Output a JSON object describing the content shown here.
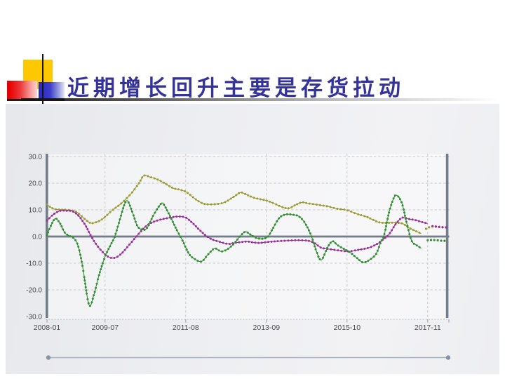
{
  "slide": {
    "title": "近期增长回升主要是存货拉动"
  },
  "palette": {
    "title_color": "#333399",
    "axis_color": "#737d89",
    "grid_color": "#c6c7cc",
    "baseline_color": "#b8b9bf",
    "divider_line_color": "#a5afbf",
    "divider_dot_color": "#8793a5",
    "series_green": "#338e33",
    "series_olive": "#9b9c31",
    "series_purple": "#9a2e9a"
  },
  "chart_data": {
    "type": "line",
    "title": "",
    "xlabel": "",
    "ylabel": "",
    "grid": true,
    "legend": false,
    "x_unit": "months since 2008-01",
    "x_axis": {
      "tick_labels": [
        "2008-01",
        "2009-07",
        "2011-08",
        "2013-09",
        "2015-10",
        "2017-11"
      ],
      "tick_months": [
        0,
        18,
        43,
        68,
        93,
        118
      ],
      "range_months": [
        0,
        124
      ]
    },
    "y_axis": {
      "tick_labels": [
        "30.0",
        "20.0",
        "10.0",
        "0.0",
        "-10.0",
        "-20.0",
        "-30.0"
      ],
      "tick_values": [
        30,
        20,
        10,
        0,
        -10,
        -20,
        -30
      ],
      "range": [
        -30,
        30
      ]
    },
    "series": [
      {
        "name": "olive",
        "color": "#9b9c31",
        "style": "dotted-line",
        "points": [
          [
            0,
            12
          ],
          [
            2,
            10.4
          ],
          [
            4,
            10.1
          ],
          [
            6,
            10
          ],
          [
            9,
            9.3
          ],
          [
            12,
            6.3
          ],
          [
            14,
            5
          ],
          [
            17,
            6.4
          ],
          [
            20,
            9.6
          ],
          [
            23,
            12.4
          ],
          [
            26,
            16
          ],
          [
            28.5,
            20
          ],
          [
            30,
            22.8
          ],
          [
            32,
            22.3
          ],
          [
            34,
            21.5
          ],
          [
            36,
            20.3
          ],
          [
            39,
            18.2
          ],
          [
            41,
            17.6
          ],
          [
            43,
            16.8
          ],
          [
            45,
            15
          ],
          [
            47,
            13.2
          ],
          [
            49,
            12.2
          ],
          [
            52,
            12.1
          ],
          [
            55,
            12.8
          ],
          [
            58,
            15
          ],
          [
            60,
            16.5
          ],
          [
            62,
            15.6
          ],
          [
            64,
            14.6
          ],
          [
            66,
            14
          ],
          [
            68,
            13.5
          ],
          [
            70,
            12.6
          ],
          [
            73,
            11
          ],
          [
            75,
            10.6
          ],
          [
            77,
            11.8
          ],
          [
            79,
            12.8
          ],
          [
            81,
            12.4
          ],
          [
            84,
            11.9
          ],
          [
            87,
            11.3
          ],
          [
            90,
            10.4
          ],
          [
            93,
            9.9
          ],
          [
            96,
            8.5
          ],
          [
            99,
            7.4
          ],
          [
            101,
            6.3
          ],
          [
            103,
            5.3
          ],
          [
            105,
            5.1
          ],
          [
            107,
            5.2
          ],
          [
            109,
            5.1
          ],
          [
            110.5,
            4.7
          ],
          [
            112,
            3.4
          ],
          [
            114,
            2.2
          ],
          [
            116,
            1.1
          ]
        ],
        "tail": [
          [
            117.5,
            2.9
          ],
          [
            119,
            3.7
          ],
          [
            120.5,
            3.7
          ],
          [
            122,
            3.5
          ],
          [
            123.5,
            3.4
          ]
        ]
      },
      {
        "name": "purple",
        "color": "#9a2e9a",
        "style": "dotted-line",
        "points": [
          [
            0,
            6
          ],
          [
            2,
            8.3
          ],
          [
            4,
            9.6
          ],
          [
            6,
            9.7
          ],
          [
            8,
            9.4
          ],
          [
            10,
            7.5
          ],
          [
            12,
            4
          ],
          [
            13.5,
            0.5
          ],
          [
            15,
            -2.5
          ],
          [
            17,
            -5.5
          ],
          [
            19,
            -7.6
          ],
          [
            21,
            -8
          ],
          [
            23,
            -6.5
          ],
          [
            25,
            -3.8
          ],
          [
            27,
            -1
          ],
          [
            29,
            1.8
          ],
          [
            31,
            4.2
          ],
          [
            33,
            5.5
          ],
          [
            35,
            6.3
          ],
          [
            37,
            6.8
          ],
          [
            39,
            7.3
          ],
          [
            41,
            7.5
          ],
          [
            43,
            7.1
          ],
          [
            45,
            5.2
          ],
          [
            47,
            2.8
          ],
          [
            49,
            0.6
          ],
          [
            51,
            -1
          ],
          [
            53,
            -1.8
          ],
          [
            55,
            -2.5
          ],
          [
            56.5,
            -2.8
          ],
          [
            58,
            -2.4
          ],
          [
            60,
            -2.1
          ],
          [
            62,
            -1.9
          ],
          [
            64,
            -2.2
          ],
          [
            66,
            -2.4
          ],
          [
            68,
            -2.1
          ],
          [
            70,
            -1.9
          ],
          [
            72,
            -1.7
          ],
          [
            75,
            -1.5
          ],
          [
            78,
            -1.4
          ],
          [
            81,
            -1.6
          ],
          [
            83,
            -2.5
          ],
          [
            85,
            -4.2
          ],
          [
            88,
            -4.8
          ],
          [
            91,
            -5.3
          ],
          [
            93.5,
            -5.6
          ],
          [
            96,
            -5.1
          ],
          [
            98,
            -4.7
          ],
          [
            100,
            -4.1
          ],
          [
            102,
            -3
          ],
          [
            104,
            -1.3
          ],
          [
            106,
            0.8
          ],
          [
            108,
            4.5
          ],
          [
            110,
            7
          ],
          [
            112,
            6.6
          ],
          [
            114,
            6.2
          ],
          [
            116,
            5.5
          ],
          [
            118,
            4.9
          ]
        ],
        "tail": [
          [
            119.5,
            3.9
          ],
          [
            121,
            3.7
          ],
          [
            122.5,
            3.5
          ],
          [
            124,
            3.4
          ]
        ]
      },
      {
        "name": "green",
        "color": "#338e33",
        "style": "dotted-line",
        "points": [
          [
            0,
            0.5
          ],
          [
            1,
            3.5
          ],
          [
            2.5,
            6.7
          ],
          [
            4,
            5
          ],
          [
            5.5,
            1.5
          ],
          [
            7,
            0.2
          ],
          [
            8,
            -0.3
          ],
          [
            9.5,
            -3
          ],
          [
            11,
            -11
          ],
          [
            13,
            -25.5
          ],
          [
            14.5,
            -22
          ],
          [
            16,
            -15
          ],
          [
            18,
            -7.5
          ],
          [
            20,
            -2.5
          ],
          [
            21,
            0
          ],
          [
            22.5,
            6
          ],
          [
            24,
            12
          ],
          [
            25,
            13.3
          ],
          [
            26.5,
            9
          ],
          [
            28,
            4
          ],
          [
            29.5,
            2.6
          ],
          [
            31,
            3.2
          ],
          [
            33,
            8
          ],
          [
            35,
            11.8
          ],
          [
            36,
            12.3
          ],
          [
            38,
            8
          ],
          [
            40,
            3
          ],
          [
            42,
            -1.5
          ],
          [
            44,
            -6.5
          ],
          [
            46,
            -8.6
          ],
          [
            48,
            -9.3
          ],
          [
            50,
            -6.6
          ],
          [
            52,
            -4.5
          ],
          [
            54,
            -5.6
          ],
          [
            56,
            -4.7
          ],
          [
            58,
            -2.6
          ],
          [
            60,
            0.3
          ],
          [
            61.5,
            1.8
          ],
          [
            63,
            0.8
          ],
          [
            65,
            -0.6
          ],
          [
            67,
            -0.8
          ],
          [
            68.5,
            0
          ],
          [
            70,
            3
          ],
          [
            72,
            7
          ],
          [
            74,
            8.3
          ],
          [
            76,
            8.2
          ],
          [
            78,
            7.6
          ],
          [
            80,
            5
          ],
          [
            82,
            0
          ],
          [
            83.5,
            -5.5
          ],
          [
            85,
            -8.8
          ],
          [
            87,
            -4
          ],
          [
            88.5,
            -1.8
          ],
          [
            90,
            -3.2
          ],
          [
            92,
            -4.6
          ],
          [
            94,
            -6
          ],
          [
            96,
            -8
          ],
          [
            98,
            -9.7
          ],
          [
            100,
            -8.7
          ],
          [
            102,
            -6.5
          ],
          [
            103.5,
            -2
          ],
          [
            104.5,
            0.5
          ],
          [
            106,
            9
          ],
          [
            107.5,
            14.5
          ],
          [
            108.5,
            15.4
          ],
          [
            110,
            12.5
          ],
          [
            111.5,
            5
          ],
          [
            113,
            -1.5
          ],
          [
            114.5,
            -3.2
          ],
          [
            116,
            -4.4
          ]
        ],
        "tail": [
          [
            118,
            -1.4
          ],
          [
            119.5,
            -1.3
          ],
          [
            121,
            -1.4
          ],
          [
            122.5,
            -1.6
          ],
          [
            124,
            -1.6
          ]
        ]
      }
    ]
  }
}
